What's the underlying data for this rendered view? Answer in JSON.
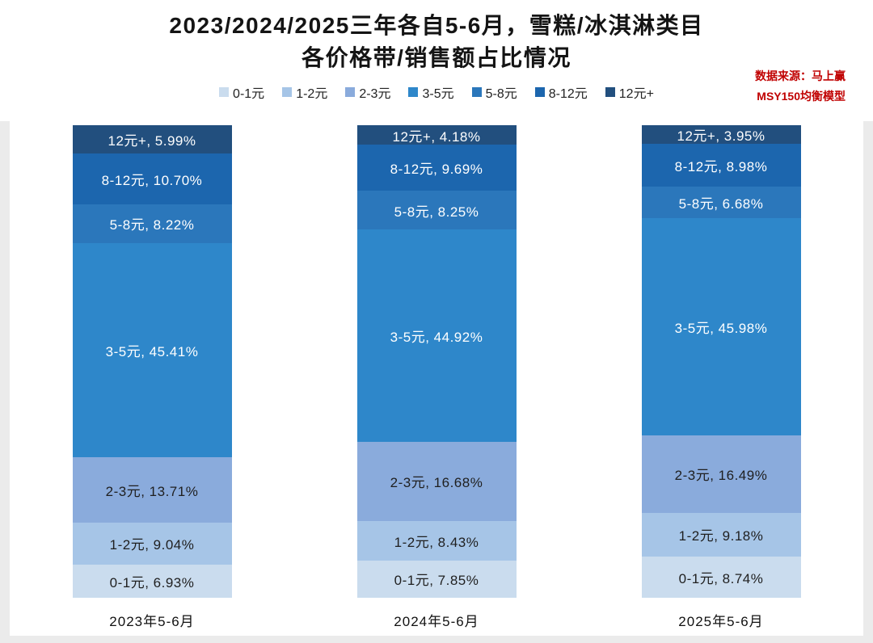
{
  "title": {
    "line1": "2023/2024/2025三年各自5-6月，雪糕/冰淇淋类目",
    "line2": "各价格带/销售额占比情况"
  },
  "source": {
    "line1": "数据来源：马上赢",
    "line2": "MSY150均衡模型"
  },
  "chart_data": {
    "type": "bar",
    "stacked": true,
    "orientation": "vertical",
    "title": "2023/2024/2025三年各自5-6月，雪糕/冰淇淋类目 各价格带/销售额占比情况",
    "xlabel": "",
    "ylabel": "",
    "ylim": [
      0,
      100
    ],
    "unit": "%",
    "gridlines": false,
    "legend_position": "top",
    "label_separator": ", ",
    "categories": [
      "2023年5-6月",
      "2024年5-6月",
      "2025年5-6月"
    ],
    "series": [
      {
        "name": "0-1元",
        "color": "#cadcee",
        "text_color": "#1f1f1f",
        "values": [
          6.93,
          7.85,
          8.74
        ]
      },
      {
        "name": "1-2元",
        "color": "#a6c5e7",
        "text_color": "#1f1f1f",
        "values": [
          9.04,
          8.43,
          9.18
        ]
      },
      {
        "name": "2-3元",
        "color": "#8aabdc",
        "text_color": "#1f1f1f",
        "values": [
          13.71,
          16.68,
          16.49
        ]
      },
      {
        "name": "3-5元",
        "color": "#2e87ca",
        "text_color": "#ffffff",
        "values": [
          45.41,
          44.92,
          45.98
        ]
      },
      {
        "name": "5-8元",
        "color": "#2b77bb",
        "text_color": "#ffffff",
        "values": [
          8.22,
          8.25,
          6.68
        ]
      },
      {
        "name": "8-12元",
        "color": "#1c66ae",
        "text_color": "#ffffff",
        "values": [
          10.7,
          9.69,
          8.98
        ]
      },
      {
        "name": "12元+",
        "color": "#224f7e",
        "text_color": "#ffffff",
        "values": [
          5.99,
          4.18,
          3.95
        ]
      }
    ]
  }
}
